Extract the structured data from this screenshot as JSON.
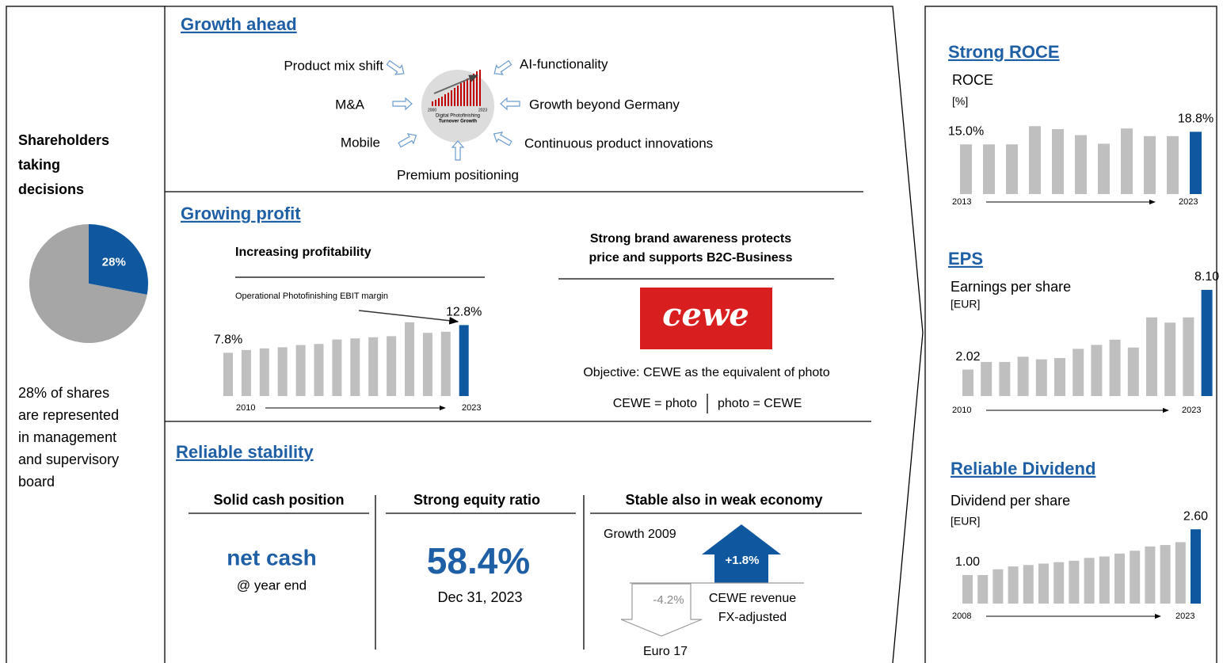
{
  "left": {
    "title": [
      "Shareholders",
      "taking",
      "decisions"
    ],
    "text": [
      "28% of shares",
      "are represented",
      "in management",
      "and supervisory",
      "board"
    ]
  },
  "growth_ahead": {
    "title": "Growth ahead",
    "drivers": [
      "Product mix shift",
      "AI-functionality",
      "M&A",
      "Growth beyond Germany",
      "Mobile",
      "Continuous product innovations",
      "Premium positioning"
    ],
    "icon_text": [
      "2000",
      "2023",
      "Digital Photofinishing",
      "Turnover Growth"
    ]
  },
  "growing_profit": {
    "title": "Growing profit",
    "left_heading": "Increasing profitability",
    "right_heading": [
      "Strong brand awareness protects",
      "price and supports B2C-Business"
    ],
    "logo": "cewe",
    "objective": "Objective: CEWE as the equivalent of photo",
    "equation": [
      "CEWE = photo",
      "photo = CEWE"
    ]
  },
  "reliable_stability": {
    "title": "Reliable stability",
    "columns": [
      {
        "heading": "Solid cash position",
        "big": "net cash",
        "small": "@ year end"
      },
      {
        "heading": "Strong equity ratio",
        "big": "58.4%",
        "small": "Dec 31, 2023"
      },
      {
        "heading": "Stable also in weak economy",
        "label": "Growth 2009",
        "up": "+1.8%",
        "up_label": [
          "CEWE revenue",
          "FX-adjusted"
        ],
        "down": "-4.2%",
        "down_label": "Euro 17"
      }
    ]
  },
  "right": {
    "headings": [
      "Strong ROCE",
      "EPS",
      "Reliable Dividend"
    ]
  },
  "chart_data": [
    {
      "type": "pie",
      "values": [
        28,
        72
      ],
      "value_labels": [
        "28%",
        null
      ],
      "colors": [
        "#0f579f",
        "#a6a6a6"
      ]
    },
    {
      "type": "bar",
      "title": "Operational Photofinishing EBIT margin",
      "categories": [
        "2010",
        null,
        null,
        null,
        null,
        null,
        null,
        null,
        null,
        null,
        null,
        null,
        null,
        "2023"
      ],
      "values": [
        7.8,
        8.3,
        8.6,
        8.8,
        9.2,
        9.4,
        10.2,
        10.4,
        10.6,
        10.8,
        13.3,
        11.4,
        11.6,
        12.8
      ],
      "value_labels": [
        "7.8%",
        null,
        null,
        null,
        null,
        null,
        null,
        null,
        null,
        null,
        null,
        null,
        null,
        "12.8%"
      ],
      "colors": [
        "#bfbfbf",
        "#bfbfbf",
        "#bfbfbf",
        "#bfbfbf",
        "#bfbfbf",
        "#bfbfbf",
        "#bfbfbf",
        "#bfbfbf",
        "#bfbfbf",
        "#bfbfbf",
        "#bfbfbf",
        "#bfbfbf",
        "#bfbfbf",
        "#0f579f"
      ],
      "ylim": [
        0,
        14
      ]
    },
    {
      "type": "bar",
      "title": "ROCE",
      "unit": "[%]",
      "categories": [
        "2013",
        null,
        null,
        null,
        null,
        null,
        null,
        null,
        null,
        null,
        "2023"
      ],
      "values": [
        15.0,
        15.0,
        15.0,
        20.5,
        19.6,
        17.8,
        15.2,
        19.8,
        17.5,
        17.5,
        18.8
      ],
      "value_labels": [
        "15.0%",
        null,
        null,
        null,
        null,
        null,
        null,
        null,
        null,
        null,
        "18.8%"
      ],
      "colors": [
        "#bfbfbf",
        "#bfbfbf",
        "#bfbfbf",
        "#bfbfbf",
        "#bfbfbf",
        "#bfbfbf",
        "#bfbfbf",
        "#bfbfbf",
        "#bfbfbf",
        "#bfbfbf",
        "#0f579f"
      ],
      "ylim": [
        0,
        22
      ]
    },
    {
      "type": "bar",
      "title": "Earnings per share",
      "unit": "[EUR]",
      "categories": [
        "2010",
        null,
        null,
        null,
        null,
        null,
        null,
        null,
        null,
        null,
        null,
        null,
        null,
        "2023"
      ],
      "values": [
        2.02,
        2.6,
        2.6,
        3.0,
        2.8,
        2.9,
        3.6,
        3.9,
        4.3,
        3.7,
        6.0,
        5.6,
        6.0,
        8.1
      ],
      "value_labels": [
        "2.02",
        null,
        null,
        null,
        null,
        null,
        null,
        null,
        null,
        null,
        null,
        null,
        null,
        "8.10"
      ],
      "colors": [
        "#bfbfbf",
        "#bfbfbf",
        "#bfbfbf",
        "#bfbfbf",
        "#bfbfbf",
        "#bfbfbf",
        "#bfbfbf",
        "#bfbfbf",
        "#bfbfbf",
        "#bfbfbf",
        "#bfbfbf",
        "#bfbfbf",
        "#bfbfbf",
        "#0f579f"
      ],
      "ylim": [
        0,
        9
      ]
    },
    {
      "type": "bar",
      "title": "Dividend per share",
      "unit": "[EUR]",
      "categories": [
        "2008",
        null,
        null,
        null,
        null,
        null,
        null,
        null,
        null,
        null,
        null,
        null,
        null,
        null,
        null,
        "2023"
      ],
      "values": [
        1.0,
        1.0,
        1.2,
        1.3,
        1.35,
        1.4,
        1.45,
        1.5,
        1.6,
        1.65,
        1.75,
        1.85,
        2.0,
        2.05,
        2.15,
        2.6
      ],
      "value_labels": [
        "1.00",
        null,
        null,
        null,
        null,
        null,
        null,
        null,
        null,
        null,
        null,
        null,
        null,
        null,
        null,
        "2.60"
      ],
      "colors": [
        "#bfbfbf",
        "#bfbfbf",
        "#bfbfbf",
        "#bfbfbf",
        "#bfbfbf",
        "#bfbfbf",
        "#bfbfbf",
        "#bfbfbf",
        "#bfbfbf",
        "#bfbfbf",
        "#bfbfbf",
        "#bfbfbf",
        "#bfbfbf",
        "#bfbfbf",
        "#bfbfbf",
        "#0f579f"
      ],
      "ylim": [
        0,
        2.8
      ]
    }
  ]
}
